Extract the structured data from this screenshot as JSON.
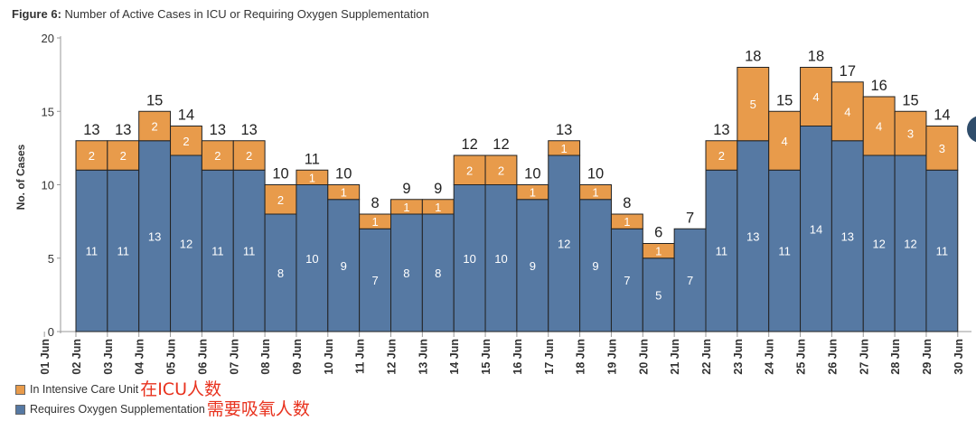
{
  "figure": {
    "title_bold": "Figure 6:",
    "title_text": " Number of Active Cases in ICU or Requiring Oxygen Supplementation"
  },
  "legend": {
    "items": [
      {
        "label": "In Intensive Care Unit",
        "note": "在ICU人数",
        "color": "#e89b4b"
      },
      {
        "label": "Requires Oxygen Supplementation",
        "note": "需要吸氧人数",
        "color": "#5679a3"
      }
    ]
  },
  "chart_data": {
    "type": "bar",
    "stacked": true,
    "title": "Number of Active Cases in ICU or Requiring Oxygen Supplementation",
    "xlabel": "",
    "ylabel": "No. of Cases",
    "ylim": [
      0,
      20
    ],
    "yticks": [
      0,
      5,
      10,
      15,
      20
    ],
    "x_ticks": [
      "01 Jun",
      "02 Jun",
      "03 Jun",
      "04 Jun",
      "05 Jun",
      "06 Jun",
      "07 Jun",
      "08 Jun",
      "09 Jun",
      "10 Jun",
      "11 Jun",
      "12 Jun",
      "13 Jun",
      "14 Jun",
      "15 Jun",
      "16 Jun",
      "17 Jun",
      "18 Jun",
      "19 Jun",
      "20 Jun",
      "21 Jun",
      "22 Jun",
      "23 Jun",
      "24 Jun",
      "25 Jun",
      "26 Jun",
      "27 Jun",
      "28 Jun",
      "29 Jun",
      "30 Jun"
    ],
    "categories": [
      "02 Jun",
      "03 Jun",
      "04 Jun",
      "05 Jun",
      "06 Jun",
      "07 Jun",
      "08 Jun",
      "09 Jun",
      "10 Jun",
      "11 Jun",
      "12 Jun",
      "13 Jun",
      "14 Jun",
      "15 Jun",
      "16 Jun",
      "17 Jun",
      "18 Jun",
      "19 Jun",
      "20 Jun",
      "21 Jun",
      "22 Jun",
      "23 Jun",
      "24 Jun",
      "25 Jun",
      "26 Jun",
      "27 Jun",
      "28 Jun",
      "29 Jun"
    ],
    "series": [
      {
        "name": "Requires Oxygen Supplementation",
        "color": "#5679a3",
        "values": [
          11,
          11,
          13,
          12,
          11,
          11,
          8,
          10,
          9,
          7,
          8,
          8,
          10,
          10,
          9,
          12,
          9,
          7,
          5,
          7,
          11,
          13,
          11,
          14,
          13,
          12,
          12,
          11
        ]
      },
      {
        "name": "In Intensive Care Unit",
        "color": "#e89b4b",
        "values": [
          2,
          2,
          2,
          2,
          2,
          2,
          2,
          1,
          1,
          1,
          1,
          1,
          2,
          2,
          1,
          1,
          1,
          1,
          1,
          0,
          2,
          5,
          4,
          4,
          4,
          4,
          3,
          3
        ]
      }
    ],
    "totals": [
      13,
      13,
      15,
      14,
      13,
      13,
      10,
      11,
      10,
      8,
      9,
      9,
      12,
      12,
      10,
      13,
      10,
      8,
      6,
      7,
      13,
      18,
      15,
      18,
      17,
      16,
      15,
      14
    ],
    "grid": false,
    "legend_position": "bottom-left"
  }
}
